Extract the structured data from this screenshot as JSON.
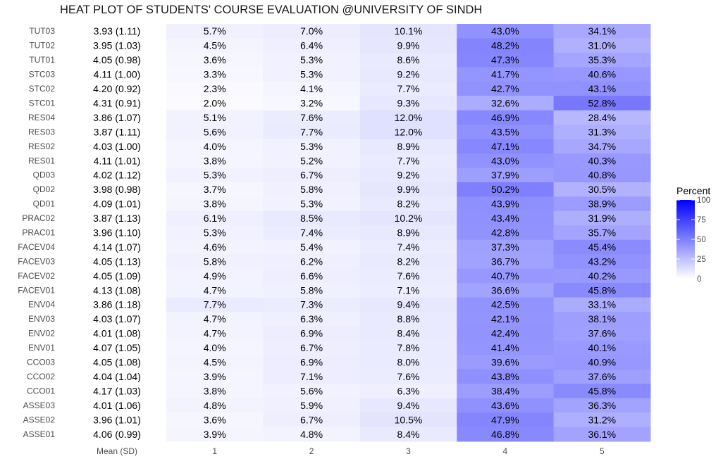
{
  "chart_data": {
    "type": "heatmap",
    "title": "HEAT PLOT OF STUDENTS' COURSE EVALUATION @UNIVERSITY OF SINDH",
    "rows": [
      "TUT03",
      "TUT02",
      "TUT01",
      "STC03",
      "STC02",
      "STC01",
      "RES04",
      "RES03",
      "RES02",
      "RES01",
      "QD03",
      "QD02",
      "QD01",
      "PRAC02",
      "PRAC01",
      "FACEV04",
      "FACEV03",
      "FACEV02",
      "FACEV01",
      "ENV04",
      "ENV03",
      "ENV02",
      "ENV01",
      "CCO03",
      "CCO02",
      "CCO01",
      "ASSE03",
      "ASSE02",
      "ASSE01"
    ],
    "mean_sd_header": "Mean (SD)",
    "mean_sd": [
      "3.93 (1.11)",
      "3.95 (1.03)",
      "4.05 (0.98)",
      "4.11 (1.00)",
      "4.20 (0.92)",
      "4.31 (0.91)",
      "3.86 (1.07)",
      "3.87 (1.11)",
      "4.03 (1.00)",
      "4.11 (1.01)",
      "4.02 (1.12)",
      "3.98 (0.98)",
      "4.09 (1.01)",
      "3.87 (1.13)",
      "3.96 (1.10)",
      "4.14 (1.07)",
      "4.05 (1.13)",
      "4.05 (1.09)",
      "4.13 (1.08)",
      "3.86 (1.18)",
      "4.03 (1.07)",
      "4.01 (1.08)",
      "4.07 (1.05)",
      "4.05 (1.08)",
      "4.04 (1.04)",
      "4.17 (1.03)",
      "4.01 (1.06)",
      "3.96 (1.01)",
      "4.06 (0.99)"
    ],
    "columns": [
      "1",
      "2",
      "3",
      "4",
      "5"
    ],
    "values": [
      [
        5.7,
        7.0,
        10.1,
        43.0,
        34.1
      ],
      [
        4.5,
        6.4,
        9.9,
        48.2,
        31.0
      ],
      [
        3.6,
        5.3,
        8.6,
        47.3,
        35.3
      ],
      [
        3.3,
        5.3,
        9.2,
        41.7,
        40.6
      ],
      [
        2.3,
        4.1,
        7.7,
        42.7,
        43.1
      ],
      [
        2.0,
        3.2,
        9.3,
        32.6,
        52.8
      ],
      [
        5.1,
        7.6,
        12.0,
        46.9,
        28.4
      ],
      [
        5.6,
        7.7,
        12.0,
        43.5,
        31.3
      ],
      [
        4.0,
        5.3,
        8.9,
        47.1,
        34.7
      ],
      [
        3.8,
        5.2,
        7.7,
        43.0,
        40.3
      ],
      [
        5.3,
        6.7,
        9.2,
        37.9,
        40.8
      ],
      [
        3.7,
        5.8,
        9.9,
        50.2,
        30.5
      ],
      [
        3.8,
        5.3,
        8.2,
        43.9,
        38.9
      ],
      [
        6.1,
        8.5,
        10.2,
        43.4,
        31.9
      ],
      [
        5.3,
        7.4,
        8.9,
        42.8,
        35.7
      ],
      [
        4.6,
        5.4,
        7.4,
        37.3,
        45.4
      ],
      [
        5.8,
        6.2,
        8.2,
        36.7,
        43.2
      ],
      [
        4.9,
        6.6,
        7.6,
        40.7,
        40.2
      ],
      [
        4.7,
        5.8,
        7.1,
        36.6,
        45.8
      ],
      [
        7.7,
        7.3,
        9.4,
        42.5,
        33.1
      ],
      [
        4.7,
        6.3,
        8.8,
        42.1,
        38.1
      ],
      [
        4.7,
        6.9,
        8.4,
        42.4,
        37.6
      ],
      [
        4.0,
        6.7,
        7.8,
        41.4,
        40.1
      ],
      [
        4.5,
        6.9,
        8.0,
        39.6,
        40.9
      ],
      [
        3.9,
        7.1,
        7.6,
        43.8,
        37.6
      ],
      [
        3.8,
        5.6,
        6.3,
        38.4,
        45.8
      ],
      [
        4.8,
        5.9,
        9.4,
        43.6,
        36.3
      ],
      [
        3.6,
        6.7,
        10.5,
        47.9,
        31.2
      ],
      [
        3.9,
        4.8,
        8.4,
        46.8,
        36.1
      ]
    ],
    "value_suffix": "%",
    "legend": {
      "title": "Percent",
      "ticks": [
        "100",
        "75",
        "50",
        "25",
        "0"
      ],
      "min": 0,
      "max": 100,
      "low_color": "#ffffff",
      "high_color": "#0000ff",
      "placement": "right"
    }
  }
}
